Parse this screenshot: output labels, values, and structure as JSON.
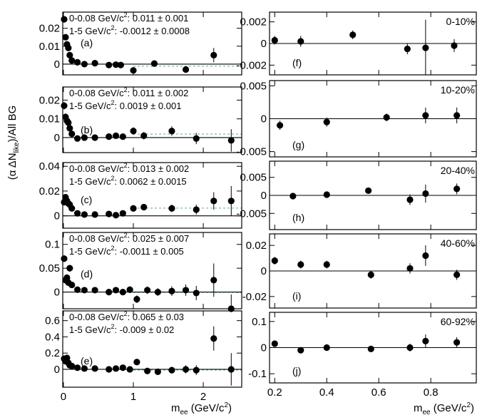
{
  "figure": {
    "y_axis_label": "(α  ΔN_like)/All BG",
    "x_axis_label_left": "m_ee (GeV/c²)",
    "x_axis_label_right": "m_ee (GeV/c²)"
  },
  "chart_data": [
    {
      "id": "a",
      "panel_label": "(a)",
      "type": "scatter",
      "xlim": [
        -0.01,
        2.55
      ],
      "ylim": [
        -0.006,
        0.029
      ],
      "x_ticks": [
        0,
        1,
        2
      ],
      "x_tick_labels": [
        "",
        "",
        ""
      ],
      "y_ticks": [
        0,
        0.01,
        0.02
      ],
      "y_tick_labels": [
        "0",
        "0.01",
        "0.02"
      ],
      "annotations": [
        "0-0.08 GeV/c²: 0.011 ± 0.001",
        "1-5 GeV/c²: -0.0012 ± 0.0008"
      ],
      "reference_line": -0.0012,
      "x": [
        0.01,
        0.03,
        0.05,
        0.07,
        0.09,
        0.12,
        0.2,
        0.3,
        0.45,
        0.65,
        0.75,
        0.82,
        1.0,
        1.3,
        1.75,
        2.15
      ],
      "y": [
        0.025,
        0.015,
        0.011,
        0.009,
        0.005,
        0.002,
        0.001,
        0.0,
        0.0005,
        -0.0005,
        -0.0003,
        -0.0005,
        -0.0035,
        0.0003,
        -0.003,
        0.005
      ],
      "yerr": [
        0.001,
        0.001,
        0.001,
        0.001,
        0.001,
        0.0008,
        0.0006,
        0.0006,
        0.0006,
        0.0008,
        0.0008,
        0.0009,
        0.0015,
        0.0015,
        0.0018,
        0.004
      ]
    },
    {
      "id": "b",
      "panel_label": "(b)",
      "type": "scatter",
      "xlim": [
        -0.01,
        2.55
      ],
      "ylim": [
        -0.008,
        0.027
      ],
      "x_ticks": [
        0,
        1,
        2
      ],
      "x_tick_labels": [
        "",
        "",
        ""
      ],
      "y_ticks": [
        0,
        0.01,
        0.02
      ],
      "y_tick_labels": [
        "0",
        "0.01",
        "0.02"
      ],
      "annotations": [
        "0-0.08 GeV/c²: 0.011 ± 0.002",
        "1-5 GeV/c²: 0.0019 ± 0.001"
      ],
      "reference_line": 0.0019,
      "x": [
        0.01,
        0.03,
        0.05,
        0.07,
        0.09,
        0.12,
        0.2,
        0.3,
        0.45,
        0.65,
        0.75,
        0.85,
        1.0,
        1.15,
        1.55,
        1.9,
        2.4
      ],
      "y": [
        0.017,
        0.011,
        0.009,
        0.008,
        0.005,
        0.002,
        -0.0005,
        0.0,
        0.0,
        0.0005,
        0.001,
        0.0005,
        0.0035,
        0.001,
        0.0035,
        -0.0005,
        -0.0015
      ],
      "yerr": [
        0.002,
        0.002,
        0.002,
        0.002,
        0.002,
        0.001,
        0.0008,
        0.0008,
        0.0008,
        0.0009,
        0.001,
        0.0012,
        0.002,
        0.002,
        0.0025,
        0.003,
        0.006
      ]
    },
    {
      "id": "c",
      "panel_label": "(c)",
      "type": "scatter",
      "xlim": [
        -0.01,
        2.55
      ],
      "ylim": [
        -0.01,
        0.043
      ],
      "x_ticks": [
        0,
        1,
        2
      ],
      "x_tick_labels": [
        "",
        "",
        ""
      ],
      "y_ticks": [
        0,
        0.02,
        0.04
      ],
      "y_tick_labels": [
        "0",
        "0.02",
        "0.04"
      ],
      "annotations": [
        "0-0.08 GeV/c²: 0.013 ± 0.002",
        "1-5 GeV/c²: 0.0062 ± 0.0015"
      ],
      "reference_line": 0.0062,
      "x": [
        0.01,
        0.03,
        0.05,
        0.07,
        0.09,
        0.12,
        0.2,
        0.3,
        0.45,
        0.65,
        0.75,
        0.85,
        1.0,
        1.15,
        1.55,
        1.9,
        2.15,
        2.4
      ],
      "y": [
        0.011,
        0.015,
        0.012,
        0.01,
        0.009,
        0.006,
        0.002,
        0.001,
        0.001,
        0.0015,
        0.0005,
        0.002,
        0.006,
        0.007,
        0.006,
        0.005,
        0.012,
        0.012
      ],
      "yerr": [
        0.002,
        0.002,
        0.002,
        0.002,
        0.002,
        0.0015,
        0.001,
        0.001,
        0.001,
        0.001,
        0.0012,
        0.0015,
        0.002,
        0.002,
        0.003,
        0.004,
        0.007,
        0.012
      ]
    },
    {
      "id": "d",
      "panel_label": "(d)",
      "type": "scatter",
      "xlim": [
        -0.01,
        2.55
      ],
      "ylim": [
        -0.035,
        0.125
      ],
      "x_ticks": [
        0,
        1,
        2
      ],
      "x_tick_labels": [
        "",
        "",
        ""
      ],
      "y_ticks": [
        0,
        0.05,
        0.1
      ],
      "y_tick_labels": [
        "0",
        "0.05",
        "0.1"
      ],
      "annotations": [
        "0-0.08 GeV/c²: 0.025 ± 0.007",
        "1-5 GeV/c²: -0.0011 ± 0.005"
      ],
      "reference_line": -0.0011,
      "x": [
        0.01,
        0.03,
        0.05,
        0.07,
        0.09,
        0.12,
        0.2,
        0.3,
        0.45,
        0.65,
        0.75,
        0.85,
        0.95,
        1.05,
        1.2,
        1.35,
        1.55,
        1.75,
        1.9,
        2.15,
        2.4
      ],
      "y": [
        0.07,
        0.025,
        0.03,
        0.02,
        0.05,
        0.015,
        0.005,
        0.004,
        0.004,
        0.0,
        0.004,
        0.0,
        0.005,
        -0.015,
        0.004,
        0.0,
        0.002,
        0.004,
        -0.002,
        0.025,
        -0.035
      ],
      "yerr": [
        0.007,
        0.007,
        0.007,
        0.007,
        0.007,
        0.005,
        0.004,
        0.004,
        0.004,
        0.004,
        0.005,
        0.006,
        0.007,
        0.008,
        0.008,
        0.008,
        0.01,
        0.012,
        0.015,
        0.035,
        0.03
      ]
    },
    {
      "id": "e",
      "panel_label": "(e)",
      "type": "scatter",
      "xlim": [
        -0.01,
        2.55
      ],
      "ylim": [
        -0.22,
        0.72
      ],
      "x_ticks": [
        0,
        1,
        2
      ],
      "x_tick_labels": [
        "0",
        "1",
        "2"
      ],
      "y_ticks": [
        0,
        0.2,
        0.4,
        0.6
      ],
      "y_tick_labels": [
        "0",
        "0.2",
        "0.4",
        "0.6"
      ],
      "annotations": [
        "0-0.08 GeV/c²: 0.065 ± 0.03",
        "1-5 GeV/c²: -0.009 ± 0.02"
      ],
      "reference_line": -0.009,
      "x": [
        0.01,
        0.03,
        0.05,
        0.07,
        0.09,
        0.12,
        0.2,
        0.3,
        0.45,
        0.65,
        0.75,
        0.85,
        0.95,
        1.05,
        1.2,
        1.35,
        1.55,
        1.75,
        1.9,
        2.15,
        2.4
      ],
      "y": [
        0.13,
        0.1,
        0.14,
        0.08,
        0.05,
        0.04,
        0.02,
        0.01,
        0.01,
        0.0,
        0.01,
        0.02,
        0.0,
        0.09,
        -0.02,
        -0.03,
        -0.01,
        0.0,
        -0.01,
        0.38,
        0.0
      ],
      "yerr": [
        0.03,
        0.03,
        0.03,
        0.03,
        0.03,
        0.02,
        0.015,
        0.015,
        0.015,
        0.015,
        0.02,
        0.02,
        0.025,
        0.03,
        0.03,
        0.03,
        0.04,
        0.05,
        0.06,
        0.15,
        0.2
      ]
    },
    {
      "id": "f",
      "panel_label": "(f)",
      "type": "scatter",
      "centrality": "0-10%",
      "xlim": [
        0.18,
        0.975
      ],
      "ylim": [
        -0.0029,
        0.0029
      ],
      "x_ticks": [
        0.2,
        0.4,
        0.6,
        0.8
      ],
      "x_tick_labels": [
        "",
        "",
        "",
        ""
      ],
      "y_ticks": [
        -0.002,
        0,
        0.002
      ],
      "y_tick_labels": [
        "-0.002",
        "0",
        "0.002"
      ],
      "x": [
        0.2,
        0.3,
        0.5,
        0.71,
        0.78,
        0.89
      ],
      "y": [
        0.0003,
        0.0002,
        0.0008,
        -0.0005,
        -0.0004,
        -0.0002
      ],
      "yerr": [
        0.0004,
        0.0005,
        0.0004,
        0.0005,
        0.0026,
        0.0006
      ]
    },
    {
      "id": "g",
      "panel_label": "(g)",
      "type": "scatter",
      "centrality": "10-20%",
      "xlim": [
        0.18,
        0.975
      ],
      "ylim": [
        -0.0058,
        0.0058
      ],
      "x_ticks": [
        0.2,
        0.4,
        0.6,
        0.8
      ],
      "x_tick_labels": [
        "",
        "",
        "",
        ""
      ],
      "y_ticks": [
        -0.005,
        0,
        0.005
      ],
      "y_tick_labels": [
        "-0.005",
        "0",
        "0.005"
      ],
      "x": [
        0.22,
        0.4,
        0.63,
        0.78,
        0.9
      ],
      "y": [
        -0.001,
        -0.0005,
        0.0002,
        0.0005,
        0.0005
      ],
      "yerr": [
        0.0007,
        0.0007,
        0.0006,
        0.0012,
        0.0012
      ]
    },
    {
      "id": "h",
      "panel_label": "(h)",
      "type": "scatter",
      "centrality": "20-40%",
      "xlim": [
        0.18,
        0.975
      ],
      "ylim": [
        -0.0095,
        0.0095
      ],
      "x_ticks": [
        0.2,
        0.4,
        0.6,
        0.8
      ],
      "x_tick_labels": [
        "",
        "",
        "",
        ""
      ],
      "y_ticks": [
        -0.005,
        0,
        0.005
      ],
      "y_tick_labels": [
        "-0.005",
        "0",
        "0.005"
      ],
      "x": [
        0.27,
        0.4,
        0.56,
        0.72,
        0.78,
        0.9
      ],
      "y": [
        -0.0002,
        0.0002,
        0.0013,
        -0.0012,
        0.0005,
        0.0018
      ],
      "yerr": [
        0.0009,
        0.0009,
        0.0008,
        0.0015,
        0.0025,
        0.0015
      ]
    },
    {
      "id": "i",
      "panel_label": "(i)",
      "type": "scatter",
      "centrality": "40-60%",
      "xlim": [
        0.18,
        0.975
      ],
      "ylim": [
        -0.029,
        0.029
      ],
      "x_ticks": [
        0.2,
        0.4,
        0.6,
        0.8
      ],
      "x_tick_labels": [
        "",
        "",
        "",
        ""
      ],
      "y_ticks": [
        -0.02,
        0,
        0.02
      ],
      "y_tick_labels": [
        "-0.02",
        "0",
        "0.02"
      ],
      "x": [
        0.2,
        0.3,
        0.4,
        0.57,
        0.72,
        0.78,
        0.9
      ],
      "y": [
        0.008,
        0.005,
        0.005,
        -0.003,
        0.002,
        0.012,
        -0.003
      ],
      "yerr": [
        0.003,
        0.003,
        0.003,
        0.003,
        0.004,
        0.008,
        0.004
      ]
    },
    {
      "id": "j",
      "panel_label": "(j)",
      "type": "scatter",
      "centrality": "60-92%",
      "xlim": [
        0.18,
        0.975
      ],
      "ylim": [
        -0.135,
        0.135
      ],
      "x_ticks": [
        0.2,
        0.4,
        0.6,
        0.8
      ],
      "x_tick_labels": [
        "0.2",
        "0.4",
        "0.6",
        "0.8"
      ],
      "y_ticks": [
        -0.1,
        0,
        0.1
      ],
      "y_tick_labels": [
        "-0.1",
        "0",
        "0.1"
      ],
      "x": [
        0.2,
        0.3,
        0.4,
        0.57,
        0.72,
        0.78,
        0.9
      ],
      "y": [
        0.015,
        -0.01,
        0.0,
        -0.005,
        0.0,
        0.025,
        0.02
      ],
      "yerr": [
        0.01,
        0.01,
        0.01,
        0.012,
        0.015,
        0.025,
        0.02
      ]
    }
  ]
}
